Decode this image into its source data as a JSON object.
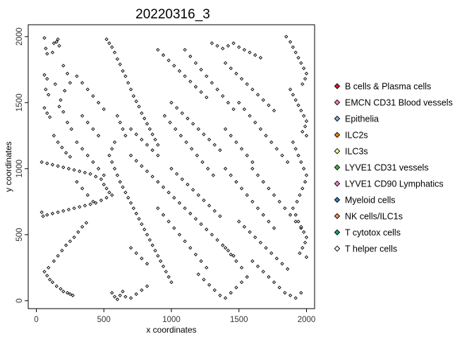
{
  "chart_data": {
    "type": "scatter",
    "title": "20220316_3",
    "xlabel": "x coordinates",
    "ylabel": "y coordinates",
    "xlim": [
      -60,
      2060
    ],
    "ylim": [
      -60,
      2090
    ],
    "xticks": [
      0,
      500,
      1000,
      1500,
      2000
    ],
    "yticks": [
      0,
      500,
      1000,
      1500,
      2000
    ],
    "grid": false,
    "legend_position": "right",
    "point_outline_color": "#000000",
    "series": [
      {
        "name": "B cells & Plasma cells",
        "color": "#E41A1C"
      },
      {
        "name": "EMCN CD31 Blood vessels",
        "color": "#F781BF"
      },
      {
        "name": "Epithelia",
        "color": "#80B1D3"
      },
      {
        "name": "ILC2s",
        "color": "#FF7F00"
      },
      {
        "name": "ILC3s",
        "color": "#FFFF99"
      },
      {
        "name": "LYVE1 CD31 vessels",
        "color": "#4DAF4A"
      },
      {
        "name": "LYVE1 CD90 Lymphatics",
        "color": "#E78AC3"
      },
      {
        "name": "Myeloid cells",
        "color": "#377EB8"
      },
      {
        "name": "NK cells/ILC1s",
        "color": "#FC8D62"
      },
      {
        "name": "T cytotox cells",
        "color": "#1B9E77"
      },
      {
        "name": "T helper cells",
        "color": "#FFFFFF"
      }
    ],
    "points": [
      [
        60,
        1990
      ],
      [
        70,
        1910
      ],
      [
        80,
        1870
      ],
      [
        60,
        1710
      ],
      [
        80,
        1680
      ],
      [
        70,
        1600
      ],
      [
        90,
        1560
      ],
      [
        60,
        1460
      ],
      [
        80,
        1420
      ],
      [
        100,
        1390
      ],
      [
        130,
        1950
      ],
      [
        150,
        1960
      ],
      [
        160,
        1980
      ],
      [
        170,
        1930
      ],
      [
        120,
        1880
      ],
      [
        200,
        1780
      ],
      [
        230,
        1720
      ],
      [
        250,
        1650
      ],
      [
        210,
        1590
      ],
      [
        180,
        1520
      ],
      [
        140,
        1640
      ],
      [
        170,
        1470
      ],
      [
        200,
        1430
      ],
      [
        230,
        1350
      ],
      [
        260,
        1300
      ],
      [
        130,
        1250
      ],
      [
        160,
        1200
      ],
      [
        190,
        1160
      ],
      [
        220,
        1120
      ],
      [
        250,
        1090
      ],
      [
        40,
        1050
      ],
      [
        80,
        1040
      ],
      [
        120,
        1030
      ],
      [
        160,
        1020
      ],
      [
        200,
        1010
      ],
      [
        240,
        1000
      ],
      [
        280,
        990
      ],
      [
        320,
        980
      ],
      [
        360,
        970
      ],
      [
        400,
        960
      ],
      [
        440,
        940
      ],
      [
        480,
        920
      ],
      [
        500,
        880
      ],
      [
        520,
        850
      ],
      [
        540,
        820
      ],
      [
        560,
        800
      ],
      [
        520,
        780
      ],
      [
        480,
        760
      ],
      [
        440,
        740
      ],
      [
        400,
        730
      ],
      [
        360,
        720
      ],
      [
        320,
        710
      ],
      [
        280,
        700
      ],
      [
        240,
        690
      ],
      [
        200,
        680
      ],
      [
        160,
        670
      ],
      [
        120,
        660
      ],
      [
        80,
        650
      ],
      [
        50,
        640
      ],
      [
        40,
        670
      ],
      [
        60,
        220
      ],
      [
        80,
        190
      ],
      [
        100,
        160
      ],
      [
        120,
        140
      ],
      [
        150,
        110
      ],
      [
        180,
        90
      ],
      [
        200,
        70
      ],
      [
        230,
        60
      ],
      [
        250,
        50
      ],
      [
        270,
        40
      ],
      [
        90,
        250
      ],
      [
        130,
        300
      ],
      [
        160,
        340
      ],
      [
        190,
        380
      ],
      [
        220,
        420
      ],
      [
        250,
        450
      ],
      [
        280,
        480
      ],
      [
        310,
        520
      ],
      [
        340,
        560
      ],
      [
        370,
        590
      ],
      [
        520,
        1980
      ],
      [
        540,
        1950
      ],
      [
        560,
        1920
      ],
      [
        580,
        1880
      ],
      [
        600,
        1830
      ],
      [
        620,
        1790
      ],
      [
        640,
        1740
      ],
      [
        660,
        1700
      ],
      [
        680,
        1650
      ],
      [
        700,
        1600
      ],
      [
        720,
        1550
      ],
      [
        740,
        1510
      ],
      [
        760,
        1470
      ],
      [
        780,
        1420
      ],
      [
        800,
        1380
      ],
      [
        820,
        1340
      ],
      [
        840,
        1300
      ],
      [
        860,
        1260
      ],
      [
        880,
        1220
      ],
      [
        900,
        1180
      ],
      [
        600,
        1400
      ],
      [
        620,
        1350
      ],
      [
        640,
        1300
      ],
      [
        660,
        1250
      ],
      [
        580,
        1200
      ],
      [
        560,
        1150
      ],
      [
        540,
        1100
      ],
      [
        560,
        1050
      ],
      [
        580,
        1000
      ],
      [
        600,
        950
      ],
      [
        620,
        900
      ],
      [
        640,
        860
      ],
      [
        660,
        820
      ],
      [
        680,
        780
      ],
      [
        700,
        740
      ],
      [
        720,
        700
      ],
      [
        740,
        660
      ],
      [
        760,
        620
      ],
      [
        780,
        580
      ],
      [
        800,
        540
      ],
      [
        820,
        500
      ],
      [
        840,
        460
      ],
      [
        860,
        420
      ],
      [
        880,
        380
      ],
      [
        900,
        340
      ],
      [
        920,
        300
      ],
      [
        940,
        260
      ],
      [
        960,
        220
      ],
      [
        980,
        180
      ],
      [
        1000,
        140
      ],
      [
        560,
        60
      ],
      [
        580,
        30
      ],
      [
        600,
        10
      ],
      [
        620,
        40
      ],
      [
        640,
        70
      ],
      [
        660,
        30
      ],
      [
        700,
        20
      ],
      [
        740,
        50
      ],
      [
        780,
        80
      ],
      [
        820,
        110
      ],
      [
        900,
        1900
      ],
      [
        940,
        1860
      ],
      [
        980,
        1820
      ],
      [
        1020,
        1780
      ],
      [
        1060,
        1740
      ],
      [
        1100,
        1700
      ],
      [
        1140,
        1660
      ],
      [
        1180,
        1620
      ],
      [
        1220,
        1580
      ],
      [
        1260,
        1540
      ],
      [
        1000,
        1500
      ],
      [
        1040,
        1460
      ],
      [
        1080,
        1420
      ],
      [
        1120,
        1380
      ],
      [
        1160,
        1340
      ],
      [
        1200,
        1300
      ],
      [
        1240,
        1260
      ],
      [
        1280,
        1220
      ],
      [
        1320,
        1180
      ],
      [
        1360,
        1140
      ],
      [
        950,
        1400
      ],
      [
        990,
        1350
      ],
      [
        1030,
        1300
      ],
      [
        1070,
        1250
      ],
      [
        1110,
        1200
      ],
      [
        1150,
        1150
      ],
      [
        1190,
        1100
      ],
      [
        1230,
        1050
      ],
      [
        1270,
        1000
      ],
      [
        1310,
        950
      ],
      [
        1000,
        1000
      ],
      [
        1040,
        960
      ],
      [
        1080,
        920
      ],
      [
        1120,
        880
      ],
      [
        1160,
        840
      ],
      [
        1200,
        800
      ],
      [
        1240,
        760
      ],
      [
        1280,
        720
      ],
      [
        1320,
        680
      ],
      [
        1360,
        640
      ],
      [
        1100,
        700
      ],
      [
        1140,
        660
      ],
      [
        1180,
        620
      ],
      [
        1220,
        580
      ],
      [
        1260,
        540
      ],
      [
        1300,
        500
      ],
      [
        1340,
        460
      ],
      [
        1380,
        420
      ],
      [
        1420,
        380
      ],
      [
        1460,
        340
      ],
      [
        900,
        700
      ],
      [
        940,
        650
      ],
      [
        980,
        600
      ],
      [
        1020,
        550
      ],
      [
        1060,
        500
      ],
      [
        1100,
        450
      ],
      [
        1140,
        400
      ],
      [
        1180,
        350
      ],
      [
        1220,
        300
      ],
      [
        1260,
        250
      ],
      [
        1200,
        200
      ],
      [
        1240,
        160
      ],
      [
        1280,
        120
      ],
      [
        1320,
        80
      ],
      [
        1360,
        40
      ],
      [
        1400,
        20
      ],
      [
        1440,
        60
      ],
      [
        1480,
        100
      ],
      [
        1520,
        140
      ],
      [
        1560,
        180
      ],
      [
        1300,
        1950
      ],
      [
        1340,
        1930
      ],
      [
        1380,
        1910
      ],
      [
        1420,
        1930
      ],
      [
        1460,
        1950
      ],
      [
        1500,
        1920
      ],
      [
        1540,
        1900
      ],
      [
        1580,
        1880
      ],
      [
        1620,
        1860
      ],
      [
        1660,
        1840
      ],
      [
        1400,
        1800
      ],
      [
        1440,
        1760
      ],
      [
        1480,
        1720
      ],
      [
        1520,
        1680
      ],
      [
        1560,
        1640
      ],
      [
        1600,
        1600
      ],
      [
        1640,
        1560
      ],
      [
        1680,
        1520
      ],
      [
        1720,
        1480
      ],
      [
        1760,
        1440
      ],
      [
        1500,
        1500
      ],
      [
        1540,
        1450
      ],
      [
        1580,
        1400
      ],
      [
        1620,
        1350
      ],
      [
        1660,
        1300
      ],
      [
        1700,
        1250
      ],
      [
        1740,
        1200
      ],
      [
        1780,
        1150
      ],
      [
        1820,
        1100
      ],
      [
        1860,
        1050
      ],
      [
        1600,
        1000
      ],
      [
        1640,
        950
      ],
      [
        1680,
        900
      ],
      [
        1720,
        850
      ],
      [
        1760,
        800
      ],
      [
        1800,
        750
      ],
      [
        1840,
        700
      ],
      [
        1880,
        650
      ],
      [
        1920,
        600
      ],
      [
        1960,
        550
      ],
      [
        1500,
        600
      ],
      [
        1540,
        560
      ],
      [
        1580,
        520
      ],
      [
        1620,
        480
      ],
      [
        1660,
        440
      ],
      [
        1700,
        400
      ],
      [
        1740,
        360
      ],
      [
        1780,
        320
      ],
      [
        1820,
        280
      ],
      [
        1860,
        240
      ],
      [
        1600,
        300
      ],
      [
        1640,
        260
      ],
      [
        1680,
        220
      ],
      [
        1720,
        180
      ],
      [
        1760,
        140
      ],
      [
        1800,
        100
      ],
      [
        1840,
        60
      ],
      [
        1880,
        40
      ],
      [
        1920,
        20
      ],
      [
        1960,
        60
      ],
      [
        1850,
        2000
      ],
      [
        1880,
        1960
      ],
      [
        1900,
        1920
      ],
      [
        1920,
        1880
      ],
      [
        1940,
        1840
      ],
      [
        1960,
        1800
      ],
      [
        1980,
        1760
      ],
      [
        2000,
        1720
      ],
      [
        1990,
        1680
      ],
      [
        1970,
        1640
      ],
      [
        1880,
        1600
      ],
      [
        1900,
        1560
      ],
      [
        1920,
        1520
      ],
      [
        1940,
        1480
      ],
      [
        1960,
        1440
      ],
      [
        1980,
        1400
      ],
      [
        2000,
        1360
      ],
      [
        1990,
        1320
      ],
      [
        1970,
        1280
      ],
      [
        2000,
        1250
      ],
      [
        1900,
        1200
      ],
      [
        1920,
        1150
      ],
      [
        1940,
        1100
      ],
      [
        1960,
        1050
      ],
      [
        1980,
        1000
      ],
      [
        2000,
        950
      ],
      [
        1990,
        900
      ],
      [
        1970,
        850
      ],
      [
        1950,
        800
      ],
      [
        1930,
        750
      ],
      [
        1900,
        700
      ],
      [
        1920,
        650
      ],
      [
        1940,
        600
      ],
      [
        1960,
        560
      ],
      [
        1980,
        520
      ],
      [
        2000,
        480
      ],
      [
        1990,
        440
      ],
      [
        1970,
        400
      ],
      [
        1950,
        360
      ],
      [
        2000,
        330
      ],
      [
        300,
        1700
      ],
      [
        340,
        1650
      ],
      [
        380,
        1600
      ],
      [
        420,
        1550
      ],
      [
        460,
        1500
      ],
      [
        500,
        1450
      ],
      [
        340,
        1400
      ],
      [
        380,
        1350
      ],
      [
        420,
        1300
      ],
      [
        460,
        1250
      ],
      [
        300,
        1200
      ],
      [
        340,
        1150
      ],
      [
        380,
        1100
      ],
      [
        420,
        1050
      ],
      [
        460,
        1000
      ],
      [
        500,
        950
      ],
      [
        300,
        900
      ],
      [
        340,
        850
      ],
      [
        380,
        800
      ],
      [
        420,
        750
      ],
      [
        700,
        1300
      ],
      [
        740,
        1260
      ],
      [
        780,
        1220
      ],
      [
        820,
        1180
      ],
      [
        860,
        1140
      ],
      [
        900,
        1100
      ],
      [
        700,
        1100
      ],
      [
        740,
        1060
      ],
      [
        780,
        1020
      ],
      [
        820,
        980
      ],
      [
        860,
        940
      ],
      [
        900,
        900
      ],
      [
        940,
        860
      ],
      [
        980,
        820
      ],
      [
        1020,
        780
      ],
      [
        1060,
        740
      ],
      [
        700,
        400
      ],
      [
        740,
        360
      ],
      [
        780,
        320
      ],
      [
        820,
        280
      ],
      [
        1100,
        1900
      ],
      [
        1140,
        1850
      ],
      [
        1180,
        1800
      ],
      [
        1220,
        1750
      ],
      [
        1260,
        1700
      ],
      [
        1300,
        1650
      ],
      [
        1340,
        1600
      ],
      [
        1380,
        1550
      ],
      [
        1420,
        1500
      ],
      [
        1460,
        1450
      ],
      [
        1400,
        1300
      ],
      [
        1440,
        1250
      ],
      [
        1480,
        1200
      ],
      [
        1520,
        1150
      ],
      [
        1560,
        1100
      ],
      [
        1600,
        1050
      ],
      [
        1400,
        1000
      ],
      [
        1440,
        950
      ],
      [
        1480,
        900
      ],
      [
        1520,
        850
      ],
      [
        1560,
        800
      ],
      [
        1600,
        750
      ],
      [
        1640,
        700
      ],
      [
        1680,
        650
      ],
      [
        1720,
        600
      ],
      [
        1760,
        550
      ],
      [
        1400,
        400
      ],
      [
        1440,
        350
      ],
      [
        1480,
        300
      ],
      [
        1520,
        250
      ]
    ]
  },
  "legend_glyph": "◆"
}
